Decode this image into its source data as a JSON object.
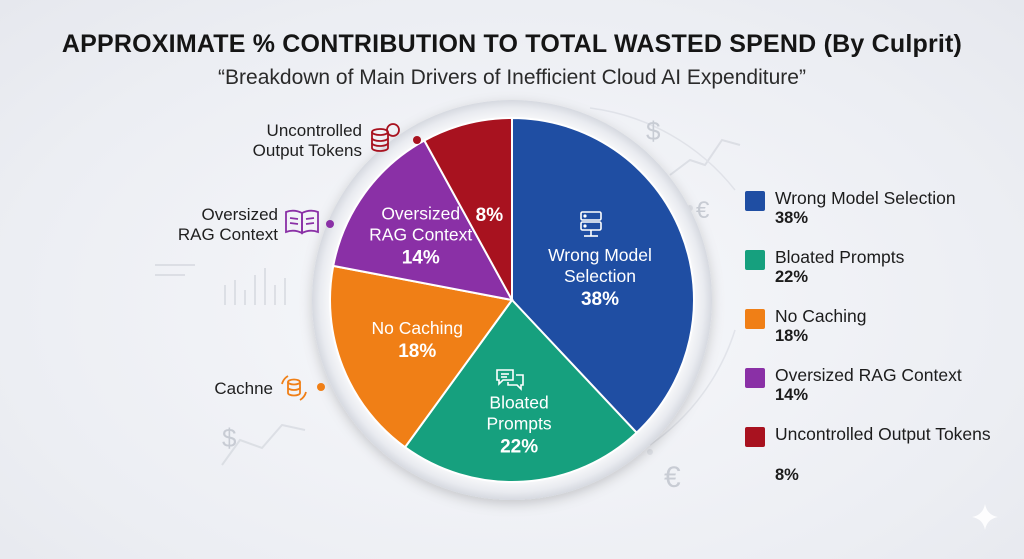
{
  "title": "APPROXIMATE % CONTRIBUTION TO TOTAL WASTED SPEND (By Culprit)",
  "subtitle": "“Breakdown of Main Drivers of Inefficient Cloud AI Expenditure”",
  "chart_data": {
    "type": "pie",
    "title": "APPROXIMATE % CONTRIBUTION TO TOTAL WASTED SPEND (By Culprit)",
    "subtitle": "“Breakdown of Main Drivers of Inefficient Cloud AI Expenditure”",
    "unit": "%",
    "slices": [
      {
        "name": "Wrong Model Selection",
        "value": 38,
        "value_label": "38%",
        "slice_label": [
          "Wrong Model",
          "Selection"
        ],
        "color": "#1f4ea3",
        "icon": "server-icon"
      },
      {
        "name": "Bloated Prompts",
        "value": 22,
        "value_label": "22%",
        "slice_label": [
          "Bloated",
          "Prompts"
        ],
        "color": "#16a07e",
        "icon": "chat-icon"
      },
      {
        "name": "No Caching",
        "value": 18,
        "value_label": "18%",
        "slice_label": [
          "No Caching"
        ],
        "color": "#f07f16",
        "icon": ""
      },
      {
        "name": "Oversized RAG Context",
        "value": 14,
        "value_label": "14%",
        "slice_label": [
          "Oversized",
          "RAG Context"
        ],
        "color": "#8a30a6",
        "icon": ""
      },
      {
        "name": "Uncontrolled Output Tokens",
        "value": 8,
        "value_label": "8%",
        "slice_label": [],
        "color": "#a8121f",
        "icon": ""
      }
    ],
    "legend": {
      "placement": "right",
      "items": [
        {
          "name": "Wrong Model Selection",
          "value": "38%"
        },
        {
          "name": "Bloated Prompts",
          "value": "22%"
        },
        {
          "name": "No Caching",
          "value": "18%"
        },
        {
          "name": "Oversized RAG Context",
          "value": "14%"
        },
        {
          "name": "Uncontrolled Output Tokens",
          "value": "8%"
        }
      ]
    }
  },
  "callouts": {
    "uncontrolled": {
      "line1": "Uncontrolled",
      "line2": "Output Tokens",
      "icon": "coins-icon",
      "dot_color": "#a8121f"
    },
    "rag": {
      "line1": "Oversized",
      "line2": "RAG Context",
      "icon": "book-icon",
      "dot_color": "#8a30a6"
    },
    "cache": {
      "line1": "Cachne",
      "icon": "database-refresh-icon",
      "dot_color": "#f07f16"
    }
  },
  "background_marks": {
    "dollar": "$",
    "euro": "€"
  }
}
